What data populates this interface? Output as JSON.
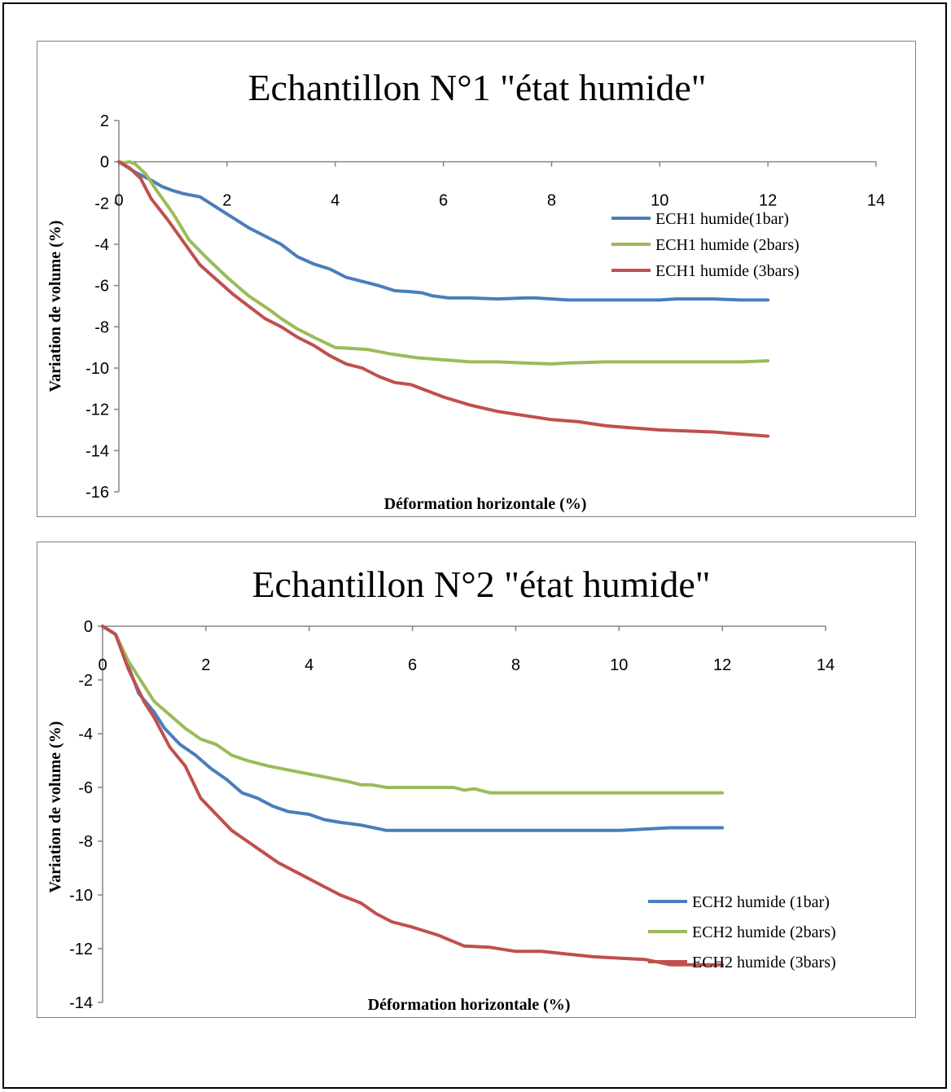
{
  "chart_data": [
    {
      "type": "line",
      "title": "Echantillon N°1 \"état humide\"",
      "xlabel": "Déformation horizontale (%)",
      "ylabel": "Variation de volume (%)",
      "xlim": [
        0,
        14
      ],
      "ylim": [
        -16,
        2
      ],
      "xticks": [
        0,
        2,
        4,
        6,
        8,
        10,
        12,
        14
      ],
      "yticks": [
        2,
        0,
        -2,
        -4,
        -6,
        -8,
        -10,
        -12,
        -14,
        -16
      ],
      "grid": false,
      "legend_position": "right",
      "series": [
        {
          "name": "ECH1 humide(1bar)",
          "color": "#4a7ebb",
          "x": [
            0,
            0.3,
            0.6,
            0.8,
            1.0,
            1.2,
            1.5,
            1.8,
            2.1,
            2.4,
            2.7,
            3.0,
            3.3,
            3.6,
            3.9,
            4.2,
            4.5,
            4.8,
            5.1,
            5.4,
            5.6,
            5.8,
            6.1,
            6.5,
            7.0,
            7.5,
            7.7,
            8.0,
            8.3,
            8.7,
            9.0,
            9.5,
            10.0,
            10.3,
            11.0,
            11.5,
            12.0
          ],
          "y": [
            0,
            -0.5,
            -0.9,
            -1.2,
            -1.4,
            -1.55,
            -1.7,
            -2.2,
            -2.7,
            -3.2,
            -3.6,
            -4.0,
            -4.6,
            -4.95,
            -5.2,
            -5.6,
            -5.8,
            -6.0,
            -6.25,
            -6.3,
            -6.35,
            -6.5,
            -6.6,
            -6.6,
            -6.65,
            -6.6,
            -6.6,
            -6.65,
            -6.7,
            -6.7,
            -6.7,
            -6.7,
            -6.7,
            -6.65,
            -6.65,
            -6.7,
            -6.7
          ]
        },
        {
          "name": "ECH1 humide (2bars)",
          "color": "#9bbb59",
          "x": [
            0,
            0.1,
            0.2,
            0.3,
            0.5,
            0.7,
            1.0,
            1.3,
            1.6,
            2.0,
            2.4,
            2.8,
            3.0,
            3.3,
            3.6,
            4.0,
            4.3,
            4.6,
            5.0,
            5.5,
            6.0,
            6.5,
            7.0,
            7.5,
            8.0,
            8.3,
            9.0,
            10.0,
            11.0,
            11.5,
            12.0
          ],
          "y": [
            0,
            -0.05,
            0,
            -0.1,
            -0.6,
            -1.4,
            -2.5,
            -3.8,
            -4.6,
            -5.6,
            -6.5,
            -7.2,
            -7.6,
            -8.1,
            -8.5,
            -9.0,
            -9.05,
            -9.1,
            -9.3,
            -9.5,
            -9.6,
            -9.7,
            -9.7,
            -9.75,
            -9.8,
            -9.75,
            -9.7,
            -9.7,
            -9.7,
            -9.7,
            -9.65
          ]
        },
        {
          "name": "ECH1 humide (3bars)",
          "color": "#c0504d",
          "x": [
            0,
            0.2,
            0.4,
            0.6,
            0.9,
            1.2,
            1.5,
            1.8,
            2.1,
            2.4,
            2.7,
            3.0,
            3.3,
            3.6,
            3.9,
            4.2,
            4.5,
            4.8,
            5.1,
            5.4,
            5.7,
            6.0,
            6.5,
            7.0,
            7.5,
            8.0,
            8.5,
            9.0,
            9.5,
            10.0,
            10.5,
            11.0,
            11.5,
            12.0
          ],
          "y": [
            0,
            -0.3,
            -0.8,
            -1.8,
            -2.8,
            -3.9,
            -5.0,
            -5.7,
            -6.4,
            -7.0,
            -7.6,
            -8.0,
            -8.5,
            -8.9,
            -9.4,
            -9.8,
            -10.0,
            -10.4,
            -10.7,
            -10.8,
            -11.1,
            -11.4,
            -11.8,
            -12.1,
            -12.3,
            -12.5,
            -12.6,
            -12.8,
            -12.9,
            -13.0,
            -13.05,
            -13.1,
            -13.2,
            -13.3
          ]
        }
      ]
    },
    {
      "type": "line",
      "title": "Echantillon N°2 \"état humide\"",
      "xlabel": "Déformation horizontale (%)",
      "ylabel": "Variation de volume (%)",
      "xlim": [
        0,
        14
      ],
      "ylim": [
        -14,
        0
      ],
      "xticks": [
        0,
        2,
        4,
        6,
        8,
        10,
        12,
        14
      ],
      "yticks": [
        0,
        -2,
        -4,
        -6,
        -8,
        -10,
        -12,
        -14
      ],
      "grid": false,
      "legend_position": "right",
      "series": [
        {
          "name": "ECH2 humide (1bar)",
          "color": "#4a7ebb",
          "x": [
            0,
            0.25,
            0.5,
            0.7,
            1.0,
            1.2,
            1.5,
            1.8,
            2.1,
            2.4,
            2.7,
            3.0,
            3.3,
            3.6,
            4.0,
            4.3,
            4.6,
            5.0,
            5.5,
            6.0,
            7.0,
            8.0,
            9.0,
            10.0,
            10.5,
            11.0,
            12.0
          ],
          "y": [
            0,
            -0.3,
            -1.5,
            -2.5,
            -3.2,
            -3.8,
            -4.4,
            -4.8,
            -5.3,
            -5.7,
            -6.2,
            -6.4,
            -6.7,
            -6.9,
            -7.0,
            -7.2,
            -7.3,
            -7.4,
            -7.6,
            -7.6,
            -7.6,
            -7.6,
            -7.6,
            -7.6,
            -7.55,
            -7.5,
            -7.5
          ]
        },
        {
          "name": "ECH2 humide (2bars)",
          "color": "#9bbb59",
          "x": [
            0,
            0.25,
            0.5,
            0.8,
            1.0,
            1.3,
            1.6,
            1.9,
            2.2,
            2.5,
            2.8,
            3.2,
            3.6,
            4.0,
            4.4,
            4.8,
            5.0,
            5.2,
            5.5,
            6.0,
            6.5,
            6.8,
            7.0,
            7.2,
            7.5,
            8.0,
            9.0,
            10.0,
            11.0,
            12.0
          ],
          "y": [
            0,
            -0.3,
            -1.3,
            -2.2,
            -2.8,
            -3.3,
            -3.8,
            -4.2,
            -4.4,
            -4.8,
            -5.0,
            -5.2,
            -5.35,
            -5.5,
            -5.65,
            -5.8,
            -5.9,
            -5.9,
            -6.0,
            -6.0,
            -6.0,
            -6.0,
            -6.1,
            -6.05,
            -6.2,
            -6.2,
            -6.2,
            -6.2,
            -6.2,
            -6.2
          ]
        },
        {
          "name": "ECH2 humide (3bars)",
          "color": "#c0504d",
          "x": [
            0,
            0.25,
            0.5,
            0.8,
            1.0,
            1.3,
            1.6,
            1.9,
            2.2,
            2.5,
            2.8,
            3.1,
            3.4,
            3.7,
            4.0,
            4.3,
            4.6,
            5.0,
            5.3,
            5.6,
            6.0,
            6.5,
            7.0,
            7.5,
            8.0,
            8.5,
            9.0,
            9.5,
            10.0,
            10.5,
            11.0,
            12.0
          ],
          "y": [
            0,
            -0.3,
            -1.6,
            -2.8,
            -3.4,
            -4.5,
            -5.2,
            -6.4,
            -7.0,
            -7.6,
            -8.0,
            -8.4,
            -8.8,
            -9.1,
            -9.4,
            -9.7,
            -10.0,
            -10.3,
            -10.7,
            -11.0,
            -11.2,
            -11.5,
            -11.9,
            -11.95,
            -12.1,
            -12.1,
            -12.2,
            -12.3,
            -12.35,
            -12.4,
            -12.6,
            -12.6
          ]
        }
      ]
    }
  ]
}
